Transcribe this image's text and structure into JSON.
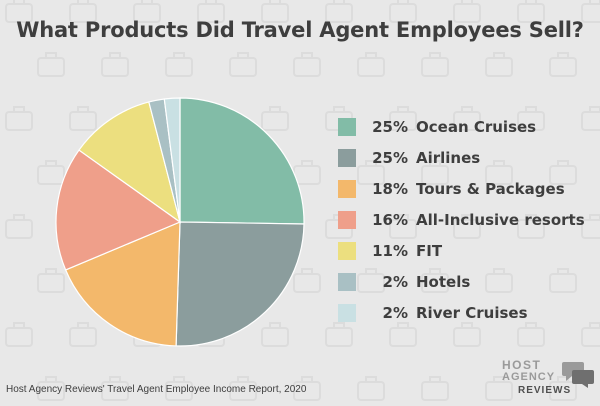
{
  "chart_data": {
    "type": "pie",
    "title": "What Products Did Travel Agent Employees Sell?",
    "slices": [
      {
        "label": "Ocean Cruises",
        "value": 25,
        "value_label": "25%",
        "color": "#82bca7"
      },
      {
        "label": "Airlines",
        "value": 25,
        "value_label": "25%",
        "color": "#8b9d9d"
      },
      {
        "label": "Tours & Packages",
        "value": 18,
        "value_label": "18%",
        "color": "#f3b86b"
      },
      {
        "label": "All-Inclusive resorts",
        "value": 16,
        "value_label": "16%",
        "color": "#ef9f8a"
      },
      {
        "label": "FIT",
        "value": 11,
        "value_label": "11%",
        "color": "#ecdf7f"
      },
      {
        "label": "Hotels",
        "value": 2,
        "value_label": "2%",
        "color": "#a9c0c4"
      },
      {
        "label": "River Cruises",
        "value": 2,
        "value_label": "2%",
        "color": "#c9e0e3"
      }
    ],
    "legend_position": "right"
  },
  "footer": {
    "source": "Host Agency Reviews' Travel Agent Employee Income Report, 2020"
  },
  "logo": {
    "line1": "HOST",
    "line2": "AGENCY",
    "line3": "REVIEWS"
  }
}
